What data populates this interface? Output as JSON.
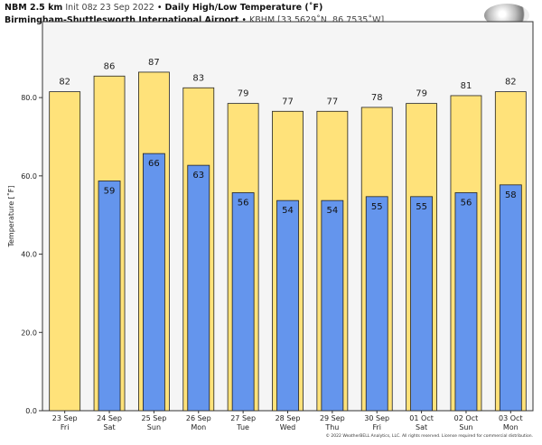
{
  "header": {
    "model": "NBM 2.5 km",
    "init": "Init 08z 23 Sep 2022",
    "sep": "•",
    "product": "Daily High/Low Temperature (˚F)",
    "station_name": "Birmingham-Shuttlesworth International Airport",
    "station_info": "KBHM [33.5629˚N, 86.7535˚W]"
  },
  "logo_text": "WeatherBELL",
  "footer": "© 2022 WeatherBELL Analytics, LLC. All rights reserved. License required for commercial distribution.",
  "colors": {
    "high": "#ffe27a",
    "low": "#6495ed",
    "plot_bg": "#f5f5f5"
  },
  "chart_data": {
    "type": "bar",
    "title": "Daily High/Low Temperature (˚F)",
    "ylabel": "Temperature [˚F]",
    "xlabel": "",
    "ylim": [
      0,
      99.4
    ],
    "yticks": [
      0,
      20,
      40,
      60,
      80
    ],
    "ytick_labels": [
      "0.0",
      "20.0",
      "40.0",
      "60.0",
      "80.0"
    ],
    "categories": [
      [
        "23 Sep",
        "Fri"
      ],
      [
        "24 Sep",
        "Sat"
      ],
      [
        "25 Sep",
        "Sun"
      ],
      [
        "26 Sep",
        "Mon"
      ],
      [
        "27 Sep",
        "Tue"
      ],
      [
        "28 Sep",
        "Wed"
      ],
      [
        "29 Sep",
        "Thu"
      ],
      [
        "30 Sep",
        "Fri"
      ],
      [
        "01 Oct",
        "Sat"
      ],
      [
        "02 Oct",
        "Sun"
      ],
      [
        "03 Oct",
        "Mon"
      ]
    ],
    "series": [
      {
        "name": "High",
        "values": [
          82,
          86,
          87,
          83,
          79,
          77,
          77,
          78,
          79,
          81,
          82
        ]
      },
      {
        "name": "Low",
        "values": [
          null,
          59,
          66,
          63,
          56,
          54,
          54,
          55,
          55,
          56,
          58
        ]
      }
    ]
  }
}
